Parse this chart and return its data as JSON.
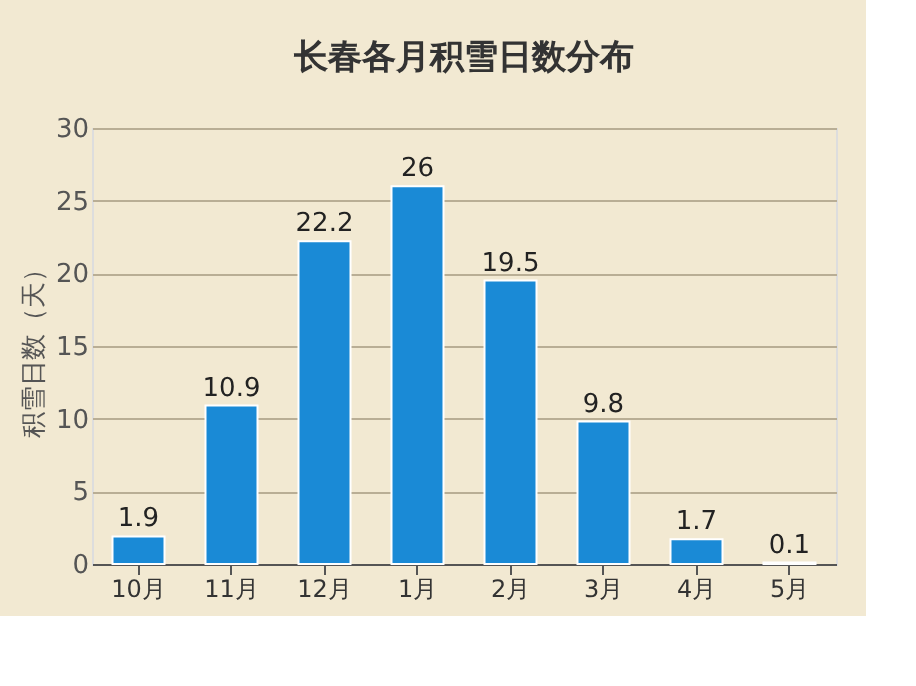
{
  "chart_data": {
    "type": "bar",
    "title": "长春各月积雪日数分布",
    "ylabel": "积雪日数（天）",
    "categories": [
      "10月",
      "11月",
      "12月",
      "1月",
      "2月",
      "3月",
      "4月",
      "5月"
    ],
    "values": [
      1.9,
      10.9,
      22.2,
      26,
      19.5,
      9.8,
      1.7,
      0.1
    ],
    "color": "#1a8ad6",
    "ylim": [
      0,
      30
    ],
    "yticks": [
      0,
      5,
      10,
      15,
      20,
      25,
      30
    ],
    "grid": "y",
    "data_labels": true
  }
}
